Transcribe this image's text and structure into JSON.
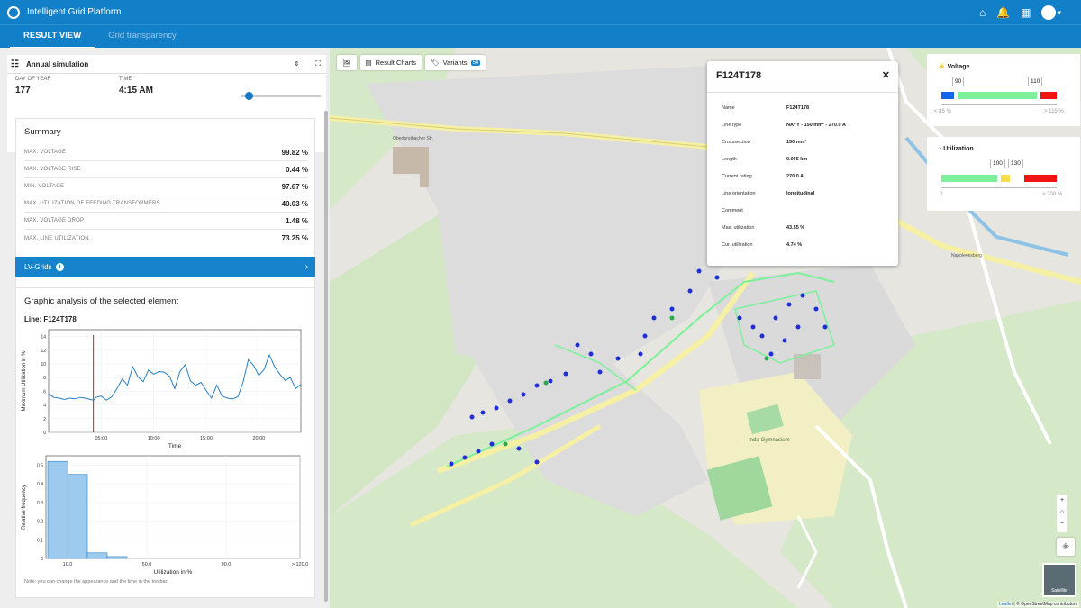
{
  "app": {
    "title": "Intelligent Grid Platform"
  },
  "tabs": [
    {
      "label": "RESULT VIEW"
    },
    {
      "label": "Grid transparency"
    }
  ],
  "simulation": {
    "selector": "Annual simulation",
    "day_label": "DAY OF YEAR",
    "day_value": "177",
    "time_label": "TIME",
    "time_value": "4:15 AM"
  },
  "summary": {
    "title": "Summary",
    "rows": [
      {
        "key": "MAX. VOLTAGE",
        "value": "99.82 %"
      },
      {
        "key": "MAX. VOLTAGE RISE",
        "value": "0.44 %"
      },
      {
        "key": "MIN. VOLTAGE",
        "value": "97.67 %"
      },
      {
        "key": "MAX. UTILIZATION OF FEEDING TRANSFORMERS",
        "value": "40.03 %"
      },
      {
        "key": "MAX. VOLTAGE DROP",
        "value": "1.48 %"
      },
      {
        "key": "MAX. LINE UTILIZATION",
        "value": "73.25 %"
      }
    ]
  },
  "lvgrids": {
    "label": "LV-Grids",
    "count": "1"
  },
  "analysis": {
    "title": "Graphic analysis of the selected element",
    "line_label": "Line: F124T178",
    "note": "Note: you can change the appearance and the time in the toolbar."
  },
  "chart_data": [
    {
      "type": "line",
      "xlabel": "Time",
      "ylabel": "Maximum Utilization in %",
      "xticks": [
        "05:00",
        "10:00",
        "15:00",
        "20:00"
      ],
      "yticks": [
        "0",
        "2",
        "4",
        "6",
        "8",
        "10",
        "12",
        "14"
      ],
      "ylim": [
        0,
        15
      ],
      "x": [
        0,
        0.5,
        1,
        1.5,
        2,
        2.5,
        3,
        3.5,
        4,
        4.25,
        4.5,
        5,
        5.5,
        6,
        6.5,
        7,
        7.5,
        8,
        8.5,
        9,
        9.5,
        10,
        10.5,
        11,
        11.5,
        12,
        12.5,
        13,
        13.5,
        14,
        14.5,
        15,
        15.5,
        16,
        16.5,
        17,
        17.5,
        18,
        18.5,
        19,
        19.5,
        20,
        20.5,
        21,
        21.5,
        22,
        22.5,
        23,
        23.5,
        24
      ],
      "values": [
        5.6,
        5.1,
        5.0,
        4.8,
        5.0,
        4.9,
        5.1,
        5.0,
        4.8,
        4.7,
        5.1,
        5.3,
        4.7,
        5.2,
        6.4,
        7.8,
        6.9,
        9.6,
        8.1,
        7.4,
        9.1,
        8.5,
        8.9,
        8.8,
        8.2,
        6.4,
        8.9,
        9.9,
        7.5,
        6.9,
        7.3,
        6.1,
        5.0,
        6.9,
        5.3,
        5.0,
        4.9,
        5.2,
        7.3,
        10.6,
        9.8,
        8.3,
        9.2,
        11.3,
        9.6,
        8.5,
        7.6,
        8.0,
        6.4,
        7.0
      ],
      "marker_x": 4.25
    },
    {
      "type": "bar",
      "xlabel": "Utilization in %",
      "ylabel": "Relative frequency",
      "xticks": [
        "10.0",
        "50.0",
        "90.0",
        "> 120.0"
      ],
      "yticks": [
        "0",
        "0.1",
        "0.2",
        "0.3",
        "0.4",
        "0.5"
      ],
      "ylim": [
        0,
        0.55
      ],
      "values": [
        0.52,
        0.45,
        0.03,
        0.01,
        0,
        0,
        0,
        0,
        0,
        0,
        0,
        0,
        0
      ]
    }
  ],
  "toolbar": {
    "charts_label": "Result Charts",
    "variants_label": "Variants",
    "variants_count": "56"
  },
  "popup": {
    "title": "F124T178",
    "rows": [
      {
        "key": "Name",
        "value": "F124T178"
      },
      {
        "key": "Line type",
        "value": "NAYY - 150 mm² - 270.0 A"
      },
      {
        "key": "Crosssection",
        "value": "150 mm²"
      },
      {
        "key": "Length",
        "value": "0.065 km"
      },
      {
        "key": "Current rating",
        "value": "270.0 A"
      },
      {
        "key": "Line orientation",
        "value": "longitudinal"
      },
      {
        "key": "Comment",
        "value": ""
      },
      {
        "key": "Max. utilization",
        "value": "43.55 %"
      },
      {
        "key": "Cur. utilization",
        "value": "4.74 %"
      }
    ]
  },
  "voltage_legend": {
    "title": "Voltage",
    "low": "90",
    "high": "110",
    "min_caption": "< 85 %",
    "max_caption": "> 115 %"
  },
  "utilization_legend": {
    "title": "Utilization",
    "low": "100",
    "high": "130",
    "min_caption": "0",
    "max_caption": "> 200 %"
  },
  "map_labels": {
    "street1": "Oberforstbacher Str.",
    "street2": "Napoleonsberg",
    "school": "Inda-Gymnasium",
    "satellite": "Satellite",
    "attribution_leaflet": "Leaflet",
    "attribution_osm": "© OpenStreetMap contributors"
  },
  "colors": {
    "primary": "#1280c8",
    "node_blue": "#1f2fd6",
    "line_green": "#7cf09a",
    "red_marker": "#e53935"
  }
}
